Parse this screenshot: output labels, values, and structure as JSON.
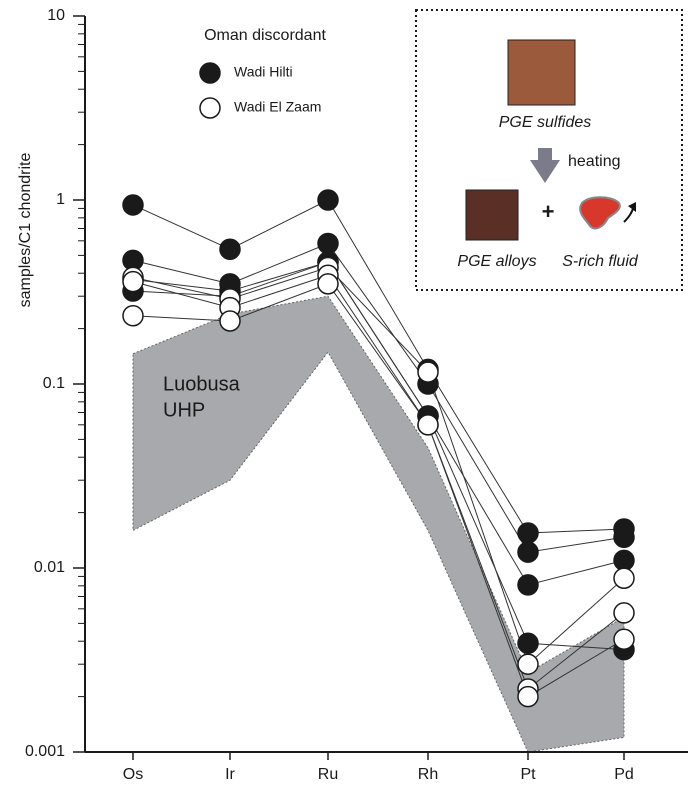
{
  "chart_data": {
    "type": "line",
    "ylabel": "samples/C1 chondrite",
    "categories": [
      "Os",
      "Ir",
      "Ru",
      "Rh",
      "Pt",
      "Pd"
    ],
    "log_y": true,
    "ylim": [
      0.001,
      10
    ],
    "yticks": [
      0.001,
      0.01,
      0.1,
      1,
      10
    ],
    "legend_title": "Oman discordant",
    "series": [
      {
        "name": "Wadi Hilti",
        "marker": "filled",
        "color": "#1a1a1a",
        "samples": [
          [
            0.94,
            0.54,
            1.0,
            0.12,
            0.0155,
            0.0163
          ],
          [
            0.47,
            0.35,
            0.58,
            0.1,
            0.0122,
            0.0147
          ],
          [
            0.37,
            0.32,
            0.46,
            0.067,
            0.0081,
            0.011
          ],
          [
            0.32,
            0.3,
            0.46,
            0.067,
            0.0039,
            0.0036
          ]
        ]
      },
      {
        "name": "Wadi El Zaam",
        "marker": "open",
        "color": "#1a1a1a",
        "samples": [
          [
            0.38,
            0.29,
            0.43,
            0.116,
            0.003,
            0.0088
          ],
          [
            0.36,
            0.26,
            0.39,
            0.06,
            0.0022,
            0.0057
          ],
          [
            0.235,
            0.22,
            0.35,
            0.06,
            0.002,
            0.0041
          ]
        ]
      }
    ],
    "range": {
      "label": [
        "Luobusa",
        "UHP"
      ],
      "color": "#a7a9ac",
      "upper": [
        0.146,
        0.24,
        0.3,
        0.045,
        0.0027,
        0.0054
      ],
      "lower": [
        0.016,
        0.03,
        0.149,
        0.016,
        0.001,
        0.0012
      ]
    }
  },
  "inset": {
    "sulfides": "PGE sulfides",
    "heating": "heating",
    "plus": "+",
    "alloys": "PGE alloys",
    "fluid": "S-rich fluid"
  }
}
